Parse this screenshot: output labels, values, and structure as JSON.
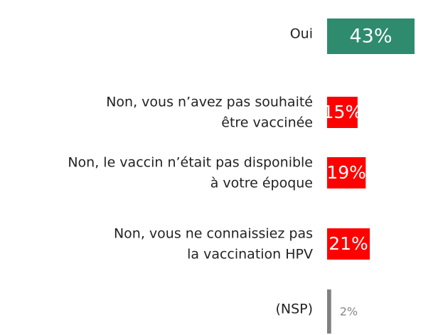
{
  "chart_data": {
    "type": "hbar",
    "categories": [
      "Oui",
      "Non, vous n’avez pas souhaité\nêtre vaccinée",
      "Non, le vaccin n’était pas disponible\nà votre époque",
      "Non, vous ne connaissiez pas\nla vaccination HPV",
      "(NSP)"
    ],
    "values": [
      43,
      15,
      19,
      21,
      2
    ],
    "value_labels": [
      "43%",
      "15%",
      "19%",
      "21%",
      "2%"
    ],
    "colors": [
      "#2e8b6e",
      "#ff0000",
      "#ff0000",
      "#ff0000",
      "#808080"
    ]
  }
}
